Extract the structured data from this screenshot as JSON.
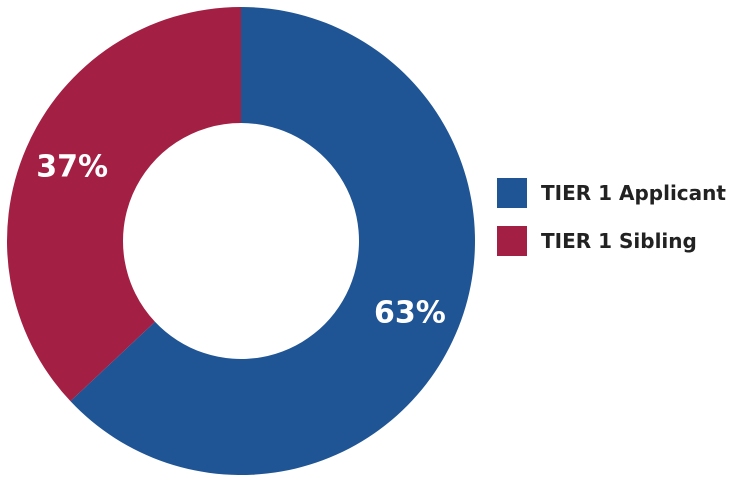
{
  "chart_data": {
    "type": "pie",
    "donut": true,
    "categories": [
      "TIER 1 Applicant",
      "TIER 1 Sibling"
    ],
    "values": [
      63,
      37
    ],
    "value_labels": [
      "63%",
      "37%"
    ],
    "colors": [
      "#1f5594",
      "#a31f43"
    ],
    "start_angle_deg": 0,
    "direction": "clockwise",
    "legend_position": "right",
    "title": ""
  },
  "legend": {
    "items": [
      {
        "label": "TIER 1 Applicant",
        "color": "#1f5594"
      },
      {
        "label": "TIER 1 Sibling",
        "color": "#a31f43"
      }
    ]
  }
}
